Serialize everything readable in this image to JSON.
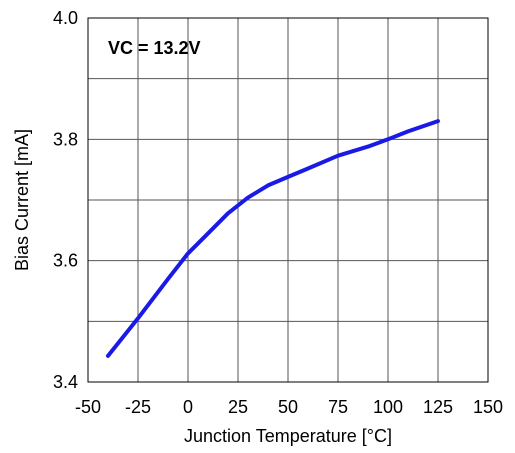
{
  "chart_data": {
    "type": "line",
    "xlabel": "Junction Temperature [°C]",
    "ylabel": "Bias Current [mA]",
    "xlim": [
      -50,
      150
    ],
    "ylim": [
      3.4,
      4.0
    ],
    "x_ticks": [
      "-50",
      "-25",
      "0",
      "25",
      "50",
      "75",
      "100",
      "125",
      "150"
    ],
    "y_ticks": [
      "3.4",
      "3.6",
      "3.8",
      "4.0"
    ],
    "grid": {
      "x_step": 25,
      "y_step": 0.1
    },
    "annotation": "VC = 13.2V",
    "series": [
      {
        "color": "#1a1ae6",
        "x": [
          -40,
          -25,
          -10,
          0,
          10,
          20,
          30,
          40,
          50,
          60,
          75,
          90,
          100,
          110,
          125
        ],
        "y": [
          3.443,
          3.505,
          3.57,
          3.612,
          3.645,
          3.678,
          3.704,
          3.724,
          3.738,
          3.752,
          3.773,
          3.788,
          3.8,
          3.813,
          3.83
        ]
      }
    ]
  }
}
